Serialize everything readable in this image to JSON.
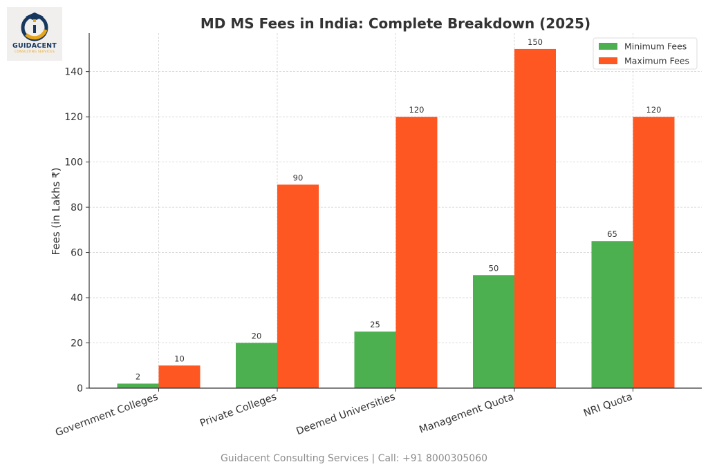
{
  "logo": {
    "name": "GUIDACENT",
    "tagline": "CONSULTING SERVICES"
  },
  "footer": "Guidacent Consulting Services | Call: +91 8000305060",
  "colors": {
    "minimum": "#4caf50",
    "maximum": "#ff5722",
    "grid": "#d0d0d0",
    "text": "#333333"
  },
  "chart_data": {
    "type": "bar",
    "title": "MD MS Fees in India: Complete Breakdown (2025)",
    "xlabel": "",
    "ylabel": "Fees (in Lakhs ₹)",
    "categories": [
      "Government Colleges",
      "Private Colleges",
      "Deemed Universities",
      "Management Quota",
      "NRI Quota"
    ],
    "series": [
      {
        "name": "Minimum Fees",
        "values": [
          2,
          20,
          25,
          50,
          65
        ]
      },
      {
        "name": "Maximum Fees",
        "values": [
          10,
          90,
          120,
          150,
          120
        ]
      }
    ],
    "ylim": [
      0,
      157
    ],
    "yticks": [
      0,
      20,
      40,
      60,
      80,
      100,
      120,
      140
    ],
    "grid": true,
    "legend": "top-right"
  }
}
